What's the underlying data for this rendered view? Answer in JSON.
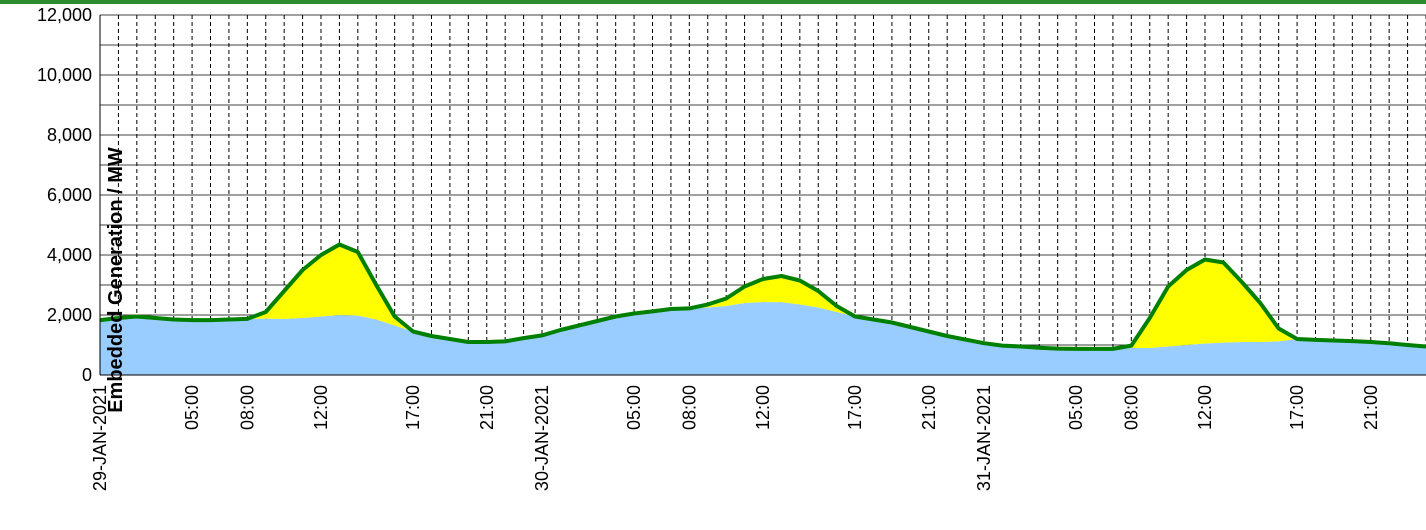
{
  "chart_data": {
    "type": "stacked-area",
    "y_label": "Embedded Generation / MW",
    "categories": [
      "29-JAN-2021",
      null,
      null,
      null,
      null,
      "05:00",
      null,
      null,
      "08:00",
      null,
      null,
      null,
      "12:00",
      null,
      null,
      null,
      null,
      "17:00",
      null,
      null,
      null,
      "21:00",
      null,
      null,
      "30-JAN-2021",
      null,
      null,
      null,
      null,
      "05:00",
      null,
      null,
      "08:00",
      null,
      null,
      null,
      "12:00",
      null,
      null,
      null,
      null,
      "17:00",
      null,
      null,
      null,
      "21:00",
      null,
      null,
      "31-JAN-2021",
      null,
      null,
      null,
      null,
      "05:00",
      null,
      null,
      "08:00",
      null,
      null,
      null,
      "12:00",
      null,
      null,
      null,
      null,
      "17:00",
      null,
      null,
      null,
      "21:00",
      null,
      null,
      null
    ],
    "series": [
      {
        "color": "#99ccff",
        "values": [
          1830,
          1900,
          1950,
          1900,
          1850,
          1830,
          1830,
          1850,
          1870,
          1880,
          1870,
          1900,
          1950,
          2000,
          1980,
          1850,
          1650,
          1450,
          1300,
          1200,
          1100,
          1100,
          1120,
          1230,
          1320,
          1500,
          1650,
          1800,
          1950,
          2050,
          2120,
          2200,
          2220,
          2250,
          2300,
          2400,
          2430,
          2430,
          2350,
          2250,
          2100,
          1950,
          1850,
          1750,
          1600,
          1450,
          1300,
          1180,
          1060,
          980,
          950,
          910,
          880,
          870,
          870,
          870,
          900,
          900,
          950,
          1000,
          1050,
          1080,
          1100,
          1100,
          1120,
          1200,
          1170,
          1150,
          1130,
          1100,
          1060,
          1000,
          950
        ]
      },
      {
        "color": "#ffff00",
        "values": [
          0,
          0,
          0,
          0,
          0,
          0,
          0,
          0,
          0,
          220,
          930,
          1600,
          2050,
          2350,
          2120,
          1150,
          300,
          0,
          0,
          0,
          0,
          0,
          0,
          0,
          0,
          0,
          0,
          0,
          0,
          0,
          0,
          0,
          0,
          100,
          250,
          550,
          770,
          870,
          800,
          550,
          200,
          0,
          0,
          0,
          0,
          0,
          0,
          0,
          0,
          0,
          0,
          0,
          0,
          0,
          0,
          0,
          80,
          1000,
          2000,
          2500,
          2800,
          2670,
          2000,
          1300,
          430,
          0,
          0,
          0,
          0,
          0,
          0,
          0,
          0
        ]
      }
    ],
    "line_color": "#008000",
    "ylim": [
      0,
      12000
    ],
    "yticks": [
      0,
      {
        "value": 2000,
        "label": "2,000"
      },
      {
        "value": 4000,
        "label": "4,000"
      },
      {
        "value": 6000,
        "label": "6,000"
      },
      {
        "value": 8000,
        "label": "8,000"
      },
      {
        "value": 10000,
        "label": "10,000"
      },
      {
        "value": 12000,
        "label": "12,000"
      }
    ],
    "yminor": [
      1000,
      3000,
      5000,
      7000,
      9000,
      11000
    ],
    "grid": true
  }
}
